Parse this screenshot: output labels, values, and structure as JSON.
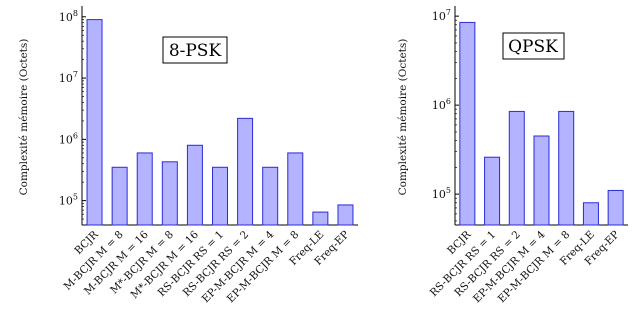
{
  "chart_data": [
    {
      "type": "bar",
      "title": "8-PSK",
      "ylabel": "Complexité mémoire (Octets)",
      "yscale": "log",
      "ylim": [
        40000,
        150000000
      ],
      "yticks": [
        100000,
        1000000,
        10000000,
        100000000
      ],
      "ytick_labels": [
        {
          "base": "10",
          "exp": "5"
        },
        {
          "base": "10",
          "exp": "6"
        },
        {
          "base": "10",
          "exp": "7"
        },
        {
          "base": "10",
          "exp": "8"
        }
      ],
      "categories": [
        "BCJR",
        "M-BCJR M = 8",
        "M-BCJR M = 16",
        "M*-BCJR M = 8",
        "M*-BCJR M = 16",
        "RS-BCJR RS = 1",
        "RS-BCJR RS = 2",
        "EP-M-BCJR M = 4",
        "EP-M-BCJR M = 8",
        "Freq-LE",
        "Freq-EP"
      ],
      "values": [
        90000000,
        350000,
        600000,
        430000,
        800000,
        350000,
        2200000,
        350000,
        600000,
        65000,
        85000
      ],
      "bar_fill": "#b3b3ff",
      "bar_stroke": "#2b2bd9",
      "grid": false
    },
    {
      "type": "bar",
      "title": "QPSK",
      "ylabel": "Complexité mémoire (Octets)",
      "yscale": "log",
      "ylim": [
        45000,
        13000000
      ],
      "yticks": [
        100000,
        1000000,
        10000000
      ],
      "ytick_labels": [
        {
          "base": "10",
          "exp": "5"
        },
        {
          "base": "10",
          "exp": "6"
        },
        {
          "base": "10",
          "exp": "7"
        }
      ],
      "categories": [
        "BCJR",
        "RS-BCJR RS = 1",
        "RS-BCJR RS = 2",
        "EP-M-BCJR M = 4",
        "EP-M-BCJR M = 8",
        "Freq-LE",
        "Freq-EP"
      ],
      "values": [
        8500000,
        260000,
        850000,
        450000,
        850000,
        80000,
        110000
      ],
      "bar_fill": "#b3b3ff",
      "bar_stroke": "#2b2bd9",
      "grid": false
    }
  ]
}
